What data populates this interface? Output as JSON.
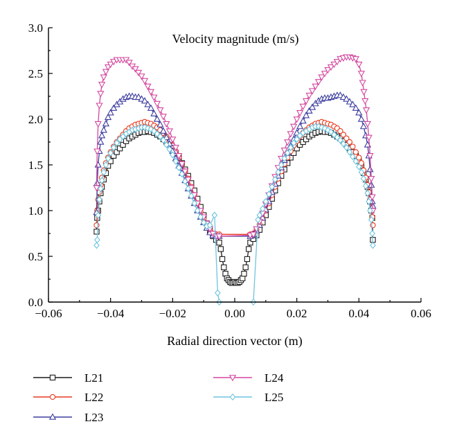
{
  "chart_data": {
    "type": "line",
    "title": "Velocity magnitude (m/s)",
    "xlabel": "Radial direction vector (m)",
    "ylabel": "",
    "xlim": [
      -0.06,
      0.06
    ],
    "ylim": [
      0.0,
      3.0
    ],
    "xticks": [
      -0.06,
      -0.04,
      -0.02,
      0.0,
      0.02,
      0.04,
      0.06
    ],
    "xtick_labels": [
      "−0.06",
      "−0.04",
      "−0.02",
      "0.00",
      "0.02",
      "0.04",
      "0.06"
    ],
    "yticks": [
      0.0,
      0.5,
      1.0,
      1.5,
      2.0,
      2.5,
      3.0
    ],
    "ytick_labels": [
      "0.0",
      "0.5",
      "1.0",
      "1.5",
      "2.0",
      "2.5",
      "3.0"
    ],
    "grid": false,
    "legend_position": "below",
    "series": [
      {
        "name": "L21",
        "color": "#1a1a1a",
        "marker": "square",
        "x": [
          -0.0445,
          -0.0443,
          -0.044,
          -0.0436,
          -0.0432,
          -0.0428,
          -0.0422,
          -0.0415,
          -0.0408,
          -0.04,
          -0.039,
          -0.038,
          -0.037,
          -0.036,
          -0.035,
          -0.034,
          -0.033,
          -0.032,
          -0.031,
          -0.03,
          -0.029,
          -0.028,
          -0.027,
          -0.026,
          -0.025,
          -0.024,
          -0.023,
          -0.022,
          -0.021,
          -0.02,
          -0.019,
          -0.018,
          -0.017,
          -0.016,
          -0.015,
          -0.014,
          -0.013,
          -0.012,
          -0.011,
          -0.01,
          -0.009,
          -0.008,
          -0.007,
          -0.006,
          -0.005,
          -0.0045,
          -0.004,
          -0.0035,
          -0.003,
          -0.0025,
          -0.002,
          -0.0015,
          -0.001,
          -0.0005,
          0.0,
          0.0005,
          0.001,
          0.0015,
          0.002,
          0.0025,
          0.003,
          0.0035,
          0.004,
          0.0045,
          0.005,
          0.006,
          0.007,
          0.008,
          0.009,
          0.01,
          0.011,
          0.012,
          0.013,
          0.014,
          0.015,
          0.016,
          0.017,
          0.018,
          0.019,
          0.02,
          0.021,
          0.022,
          0.023,
          0.024,
          0.025,
          0.026,
          0.027,
          0.028,
          0.029,
          0.03,
          0.031,
          0.032,
          0.033,
          0.034,
          0.035,
          0.036,
          0.037,
          0.038,
          0.039,
          0.04,
          0.0408,
          0.0415,
          0.0422,
          0.0428,
          0.0432,
          0.0436,
          0.044,
          0.0443,
          0.0445
        ],
        "y": [
          0.77,
          0.92,
          1.0,
          1.1,
          1.19,
          1.26,
          1.34,
          1.41,
          1.49,
          1.54,
          1.6,
          1.64,
          1.68,
          1.72,
          1.76,
          1.79,
          1.81,
          1.83,
          1.85,
          1.86,
          1.86,
          1.87,
          1.86,
          1.85,
          1.83,
          1.81,
          1.78,
          1.75,
          1.72,
          1.68,
          1.63,
          1.58,
          1.52,
          1.45,
          1.38,
          1.3,
          1.22,
          1.13,
          1.04,
          0.95,
          0.86,
          0.78,
          0.72,
          0.68,
          0.65,
          0.58,
          0.47,
          0.38,
          0.31,
          0.26,
          0.24,
          0.22,
          0.21,
          0.21,
          0.22,
          0.21,
          0.21,
          0.22,
          0.24,
          0.26,
          0.31,
          0.38,
          0.47,
          0.58,
          0.65,
          0.69,
          0.73,
          0.79,
          0.87,
          0.95,
          1.04,
          1.13,
          1.22,
          1.3,
          1.38,
          1.45,
          1.52,
          1.58,
          1.63,
          1.68,
          1.72,
          1.75,
          1.78,
          1.81,
          1.83,
          1.85,
          1.86,
          1.87,
          1.86,
          1.86,
          1.85,
          1.83,
          1.81,
          1.79,
          1.76,
          1.72,
          1.68,
          1.64,
          1.6,
          1.54,
          1.49,
          1.41,
          1.34,
          1.26,
          1.19,
          1.1,
          1.0,
          0.92,
          0.68
        ]
      },
      {
        "name": "L22",
        "color": "#e8391e",
        "marker": "circle",
        "x": [
          -0.0445,
          -0.0443,
          -0.044,
          -0.0436,
          -0.0432,
          -0.0428,
          -0.0422,
          -0.0415,
          -0.0408,
          -0.04,
          -0.039,
          -0.038,
          -0.037,
          -0.036,
          -0.035,
          -0.034,
          -0.033,
          -0.032,
          -0.031,
          -0.03,
          -0.029,
          -0.028,
          -0.027,
          -0.026,
          -0.025,
          -0.024,
          -0.023,
          -0.022,
          -0.021,
          -0.02,
          -0.019,
          -0.018,
          -0.017,
          -0.016,
          -0.015,
          -0.014,
          -0.013,
          -0.012,
          -0.011,
          -0.01,
          -0.009,
          -0.008,
          -0.007,
          -0.006,
          -0.005,
          0.005,
          0.006,
          0.007,
          0.008,
          0.009,
          0.01,
          0.011,
          0.012,
          0.013,
          0.014,
          0.015,
          0.016,
          0.017,
          0.018,
          0.019,
          0.02,
          0.021,
          0.022,
          0.023,
          0.024,
          0.025,
          0.026,
          0.027,
          0.028,
          0.029,
          0.03,
          0.031,
          0.032,
          0.033,
          0.034,
          0.035,
          0.036,
          0.037,
          0.038,
          0.039,
          0.04,
          0.0408,
          0.0415,
          0.0422,
          0.0428,
          0.0432,
          0.0436,
          0.044,
          0.0443,
          0.0445
        ],
        "y": [
          0.84,
          1.0,
          1.12,
          1.2,
          1.28,
          1.36,
          1.44,
          1.52,
          1.58,
          1.64,
          1.7,
          1.75,
          1.79,
          1.83,
          1.87,
          1.9,
          1.92,
          1.94,
          1.95,
          1.96,
          1.97,
          1.96,
          1.95,
          1.93,
          1.91,
          1.88,
          1.85,
          1.81,
          1.76,
          1.71,
          1.65,
          1.58,
          1.51,
          1.43,
          1.35,
          1.26,
          1.17,
          1.08,
          0.99,
          0.91,
          0.84,
          0.79,
          0.75,
          0.74,
          0.74,
          0.74,
          0.75,
          0.79,
          0.85,
          0.92,
          1.0,
          1.08,
          1.17,
          1.26,
          1.35,
          1.43,
          1.51,
          1.58,
          1.65,
          1.71,
          1.76,
          1.81,
          1.85,
          1.88,
          1.91,
          1.93,
          1.95,
          1.96,
          1.97,
          1.96,
          1.95,
          1.94,
          1.92,
          1.9,
          1.87,
          1.83,
          1.79,
          1.75,
          1.7,
          1.64,
          1.58,
          1.52,
          1.44,
          1.36,
          1.28,
          1.2,
          1.12,
          1.0,
          0.93,
          0.84
        ]
      },
      {
        "name": "L23",
        "color": "#3b3b9e",
        "marker": "triangle-up",
        "x": [
          -0.0445,
          -0.0443,
          -0.044,
          -0.0436,
          -0.0432,
          -0.0428,
          -0.0422,
          -0.0415,
          -0.0408,
          -0.04,
          -0.039,
          -0.038,
          -0.037,
          -0.036,
          -0.035,
          -0.034,
          -0.033,
          -0.032,
          -0.031,
          -0.03,
          -0.029,
          -0.028,
          -0.027,
          -0.026,
          -0.025,
          -0.024,
          -0.023,
          -0.022,
          -0.021,
          -0.02,
          -0.019,
          -0.018,
          -0.017,
          -0.016,
          -0.015,
          -0.014,
          -0.013,
          -0.012,
          -0.011,
          -0.01,
          -0.009,
          -0.008,
          -0.007,
          -0.006,
          -0.005,
          0.005,
          0.006,
          0.007,
          0.008,
          0.009,
          0.01,
          0.011,
          0.012,
          0.013,
          0.014,
          0.015,
          0.016,
          0.017,
          0.018,
          0.019,
          0.02,
          0.021,
          0.022,
          0.023,
          0.024,
          0.025,
          0.026,
          0.027,
          0.028,
          0.029,
          0.03,
          0.031,
          0.032,
          0.033,
          0.034,
          0.035,
          0.036,
          0.037,
          0.038,
          0.039,
          0.04,
          0.0408,
          0.0415,
          0.0422,
          0.0428,
          0.0432,
          0.0436,
          0.044,
          0.0443,
          0.0445
        ],
        "y": [
          0.98,
          1.3,
          1.5,
          1.65,
          1.75,
          1.82,
          1.88,
          1.95,
          2.02,
          2.07,
          2.12,
          2.16,
          2.19,
          2.22,
          2.24,
          2.25,
          2.25,
          2.24,
          2.24,
          2.22,
          2.2,
          2.16,
          2.12,
          2.06,
          2.0,
          1.94,
          1.87,
          1.8,
          1.73,
          1.65,
          1.57,
          1.49,
          1.41,
          1.33,
          1.24,
          1.16,
          1.08,
          1.0,
          0.93,
          0.87,
          0.81,
          0.76,
          0.73,
          0.72,
          0.72,
          0.72,
          0.74,
          0.78,
          0.84,
          0.92,
          1.01,
          1.1,
          1.2,
          1.29,
          1.38,
          1.47,
          1.55,
          1.63,
          1.71,
          1.78,
          1.85,
          1.92,
          1.98,
          2.04,
          2.09,
          2.13,
          2.17,
          2.2,
          2.22,
          2.23,
          2.23,
          2.24,
          2.25,
          2.26,
          2.26,
          2.24,
          2.22,
          2.19,
          2.16,
          2.12,
          2.07,
          2.0,
          1.92,
          1.82,
          1.72,
          1.6,
          1.45,
          1.28,
          1.1,
          1.05
        ]
      },
      {
        "name": "L24",
        "color": "#d3479e",
        "marker": "triangle-down",
        "x": [
          -0.0445,
          -0.0443,
          -0.044,
          -0.0436,
          -0.0432,
          -0.0428,
          -0.0422,
          -0.0415,
          -0.0408,
          -0.04,
          -0.039,
          -0.038,
          -0.037,
          -0.036,
          -0.035,
          -0.034,
          -0.033,
          -0.032,
          -0.031,
          -0.03,
          -0.029,
          -0.028,
          -0.027,
          -0.026,
          -0.025,
          -0.024,
          -0.023,
          -0.022,
          -0.021,
          -0.02,
          -0.019,
          -0.018,
          -0.017,
          -0.016,
          -0.015,
          -0.014,
          -0.013,
          -0.012,
          -0.011,
          -0.01,
          -0.009,
          -0.008,
          -0.007,
          -0.006,
          -0.005,
          0.005,
          0.006,
          0.007,
          0.008,
          0.009,
          0.01,
          0.011,
          0.012,
          0.013,
          0.014,
          0.015,
          0.016,
          0.017,
          0.018,
          0.019,
          0.02,
          0.021,
          0.022,
          0.023,
          0.024,
          0.025,
          0.026,
          0.027,
          0.028,
          0.029,
          0.03,
          0.031,
          0.032,
          0.033,
          0.034,
          0.035,
          0.036,
          0.037,
          0.038,
          0.039,
          0.04,
          0.0408,
          0.0412,
          0.0416,
          0.042,
          0.0424,
          0.0428,
          0.0432,
          0.0436,
          0.044,
          0.0443,
          0.0445
        ],
        "y": [
          1.25,
          1.65,
          1.95,
          2.15,
          2.28,
          2.38,
          2.46,
          2.52,
          2.57,
          2.6,
          2.63,
          2.65,
          2.65,
          2.65,
          2.65,
          2.62,
          2.58,
          2.55,
          2.51,
          2.47,
          2.42,
          2.36,
          2.3,
          2.24,
          2.17,
          2.1,
          2.03,
          1.95,
          1.87,
          1.78,
          1.69,
          1.6,
          1.51,
          1.43,
          1.34,
          1.25,
          1.17,
          1.08,
          1.0,
          0.93,
          0.86,
          0.8,
          0.75,
          0.72,
          0.72,
          0.73,
          0.74,
          0.8,
          0.88,
          0.97,
          1.07,
          1.17,
          1.27,
          1.37,
          1.47,
          1.57,
          1.66,
          1.75,
          1.84,
          1.92,
          2.0,
          2.07,
          2.14,
          2.2,
          2.26,
          2.31,
          2.36,
          2.41,
          2.46,
          2.5,
          2.54,
          2.57,
          2.6,
          2.63,
          2.66,
          2.67,
          2.68,
          2.68,
          2.67,
          2.66,
          2.6,
          2.5,
          2.4,
          2.3,
          2.2,
          2.1,
          1.95,
          1.8,
          1.6,
          1.35,
          1.15,
          1.0
        ]
      },
      {
        "name": "L25",
        "color": "#6ec4dd",
        "marker": "diamond",
        "x": [
          -0.0445,
          -0.0443,
          -0.044,
          -0.0436,
          -0.0432,
          -0.0428,
          -0.0422,
          -0.0415,
          -0.0408,
          -0.04,
          -0.039,
          -0.038,
          -0.037,
          -0.036,
          -0.035,
          -0.034,
          -0.033,
          -0.032,
          -0.031,
          -0.03,
          -0.029,
          -0.028,
          -0.027,
          -0.026,
          -0.025,
          -0.024,
          -0.023,
          -0.022,
          -0.021,
          -0.02,
          -0.019,
          -0.018,
          -0.017,
          -0.016,
          -0.015,
          -0.014,
          -0.013,
          -0.012,
          -0.011,
          -0.01,
          -0.009,
          -0.008,
          -0.0065,
          -0.0055,
          -0.005,
          0.006,
          0.0075,
          0.008,
          0.009,
          0.01,
          0.011,
          0.012,
          0.013,
          0.014,
          0.015,
          0.016,
          0.017,
          0.018,
          0.019,
          0.02,
          0.021,
          0.022,
          0.023,
          0.024,
          0.025,
          0.026,
          0.027,
          0.028,
          0.029,
          0.03,
          0.031,
          0.032,
          0.033,
          0.034,
          0.035,
          0.036,
          0.037,
          0.038,
          0.039,
          0.04,
          0.0408,
          0.0415,
          0.0422,
          0.0428,
          0.0432,
          0.0436,
          0.044,
          0.0443,
          0.0445
        ],
        "y": [
          0.62,
          0.68,
          0.95,
          1.12,
          1.24,
          1.33,
          1.42,
          1.5,
          1.57,
          1.63,
          1.69,
          1.74,
          1.78,
          1.81,
          1.84,
          1.86,
          1.88,
          1.89,
          1.9,
          1.91,
          1.91,
          1.9,
          1.89,
          1.87,
          1.84,
          1.81,
          1.77,
          1.72,
          1.67,
          1.61,
          1.54,
          1.47,
          1.4,
          1.32,
          1.24,
          1.16,
          1.08,
          1.0,
          0.93,
          0.87,
          0.83,
          0.84,
          0.95,
          0.1,
          0.0,
          0.0,
          0.9,
          0.95,
          1.02,
          1.1,
          1.18,
          1.26,
          1.34,
          1.42,
          1.5,
          1.57,
          1.63,
          1.69,
          1.74,
          1.78,
          1.82,
          1.85,
          1.87,
          1.89,
          1.91,
          1.92,
          1.92,
          1.91,
          1.9,
          1.88,
          1.86,
          1.83,
          1.8,
          1.77,
          1.73,
          1.69,
          1.64,
          1.59,
          1.54,
          1.48,
          1.42,
          1.35,
          1.27,
          1.19,
          1.1,
          1.0,
          0.9,
          0.75,
          0.62
        ]
      }
    ]
  }
}
